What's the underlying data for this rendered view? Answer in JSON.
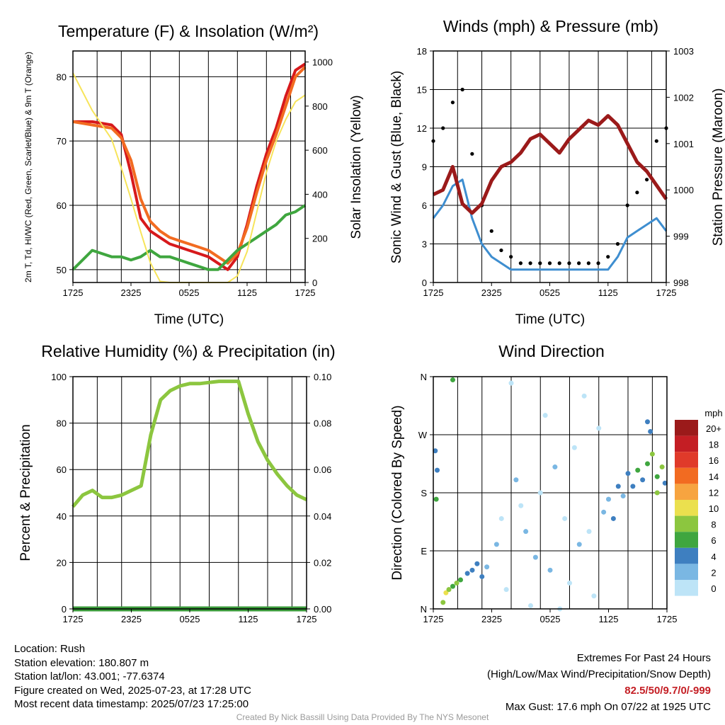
{
  "colors": {
    "t2m": "#d7191c",
    "td": "#3fa63f",
    "t9m": "#f26b21",
    "insolation": "#f7e45a",
    "wind": "#3e8ed0",
    "gust": "#000000",
    "pressure": "#9b1a1a",
    "rh": "#8cc63f",
    "precip": "#3a9a3a"
  },
  "footer": {
    "location": "Location: Rush",
    "elevation": "Station elevation: 180.807 m",
    "latlon": "Station lat/lon: 43.001; -77.6374",
    "created": "Figure created on Wed, 2025-07-23, at 17:28 UTC",
    "recent": "Most recent data timestamp: 2025/07/23 17:25:00",
    "extremes_title": "Extremes For Past 24 Hours",
    "extremes_sub": "(High/Low/Max Wind/Precipitation/Snow Depth)",
    "extremes_values": "82.5/50/9.7/0/-999",
    "max_gust": "Max Gust: 17.6 mph On 07/22 at 1925 UTC",
    "credit": "Created By Nick Bassill Using Data Provided By The NYS Mesonet"
  },
  "chart_data": [
    {
      "type": "line",
      "title": "Temperature (F) & Insolation (W/m²)",
      "xlabel": "Time (UTC)",
      "ylabel_left": "2m T, Td, HI/WC (Red, Green, Scarlet/Blue) & 9m T (Orange)",
      "ylabel_right": "Solar Insolation (Yellow)",
      "xticks": [
        "1725",
        "2325",
        "0525",
        "1125",
        "1725"
      ],
      "ylim_left": [
        48,
        84
      ],
      "yticks_left": [
        50,
        60,
        70,
        80
      ],
      "ylim_right": [
        0,
        1050
      ],
      "yticks_right": [
        0,
        200,
        400,
        600,
        800,
        1000
      ],
      "x_hours": [
        0,
        2,
        4,
        5,
        6,
        7,
        8,
        9,
        10,
        11,
        12,
        13,
        14,
        15,
        16,
        17,
        18,
        19,
        20,
        21,
        22,
        23,
        24
      ],
      "series": [
        {
          "name": "2m T",
          "color": "#d7191c",
          "values": [
            73,
            73,
            72.5,
            71,
            65,
            58,
            56,
            55,
            54,
            53.5,
            53,
            52.5,
            52,
            51,
            50,
            52,
            57,
            63,
            68,
            72,
            77,
            81,
            82
          ]
        },
        {
          "name": "9m T",
          "color": "#f26b21",
          "values": [
            73,
            72.5,
            72,
            70.5,
            67,
            61,
            57.5,
            56,
            55,
            54.5,
            54,
            53.5,
            53,
            52,
            51,
            52.5,
            56.5,
            62,
            67,
            71,
            75.5,
            80,
            81.5
          ]
        },
        {
          "name": "Td",
          "color": "#3fa63f",
          "values": [
            50,
            53,
            52,
            52,
            51.5,
            52,
            53,
            52,
            52,
            51.5,
            51,
            50.5,
            50,
            50,
            51.5,
            53,
            54,
            55,
            56,
            57,
            58.5,
            59,
            60
          ]
        },
        {
          "name": "Insolation",
          "color": "#f7e45a",
          "axis": "right",
          "values": [
            950,
            780,
            650,
            520,
            380,
            230,
            90,
            5,
            0,
            0,
            0,
            0,
            0,
            0,
            0,
            30,
            140,
            320,
            500,
            640,
            740,
            820,
            850
          ]
        }
      ]
    },
    {
      "type": "line",
      "title": "Winds (mph) & Pressure (mb)",
      "xlabel": "Time (UTC)",
      "ylabel_left": "Sonic Wind & Gust (Blue, Black)",
      "ylabel_right": "Station Pressure (Maroon)",
      "xticks": [
        "1725",
        "2325",
        "0525",
        "1125",
        "1725"
      ],
      "ylim_left": [
        0,
        18
      ],
      "yticks_left": [
        0,
        3,
        6,
        9,
        12,
        15,
        18
      ],
      "ylim_right": [
        998,
        1003
      ],
      "yticks_right": [
        998,
        999,
        1000,
        1001,
        1002,
        1003
      ],
      "x_hours": [
        0,
        1,
        2,
        3,
        4,
        5,
        6,
        7,
        8,
        9,
        10,
        11,
        12,
        13,
        14,
        15,
        16,
        17,
        18,
        19,
        20,
        21,
        22,
        23,
        24
      ],
      "series": [
        {
          "name": "Wind",
          "color": "#3e8ed0",
          "values": [
            5,
            6,
            7.5,
            8,
            5,
            3,
            2,
            1.5,
            1,
            1,
            1,
            1,
            1,
            1,
            1,
            1,
            1,
            1,
            1,
            2,
            3.5,
            4,
            4.5,
            5,
            4
          ]
        },
        {
          "name": "Gust",
          "color": "#000000",
          "values": [
            11,
            12,
            14,
            15,
            10,
            6,
            4,
            2.5,
            2,
            1.5,
            1.5,
            1.5,
            1.5,
            1.5,
            1.5,
            1.5,
            1.5,
            1.5,
            2,
            3,
            6,
            7,
            8,
            11,
            12
          ]
        },
        {
          "name": "Pressure",
          "color": "#9b1a1a",
          "axis": "right",
          "values": [
            999.9,
            1000,
            1000.5,
            999.7,
            999.5,
            999.7,
            1000.2,
            1000.5,
            1000.6,
            1000.8,
            1001.1,
            1001.2,
            1001,
            1000.8,
            1001.1,
            1001.3,
            1001.5,
            1001.4,
            1001.6,
            1001.4,
            1001,
            1000.6,
            1000.4,
            1000.1,
            999.8
          ]
        }
      ]
    },
    {
      "type": "line",
      "title": "Relative Humidity (%) & Precipitation (in)",
      "xlabel": "",
      "ylabel_left": "Percent & Precipitation",
      "xticks": [
        "1725",
        "2325",
        "0525",
        "1125",
        "1725"
      ],
      "ylim_left": [
        0,
        100
      ],
      "yticks_left": [
        0,
        20,
        40,
        60,
        80,
        100
      ],
      "ylim_right": [
        0,
        0.1
      ],
      "yticks_right": [
        "0.00",
        "0.02",
        "0.04",
        "0.06",
        "0.08",
        "0.10"
      ],
      "x_hours": [
        0,
        1,
        2,
        3,
        4,
        5,
        6,
        7,
        8,
        9,
        10,
        11,
        12,
        13,
        14,
        15,
        16,
        17,
        18,
        19,
        20,
        21,
        22,
        23,
        24
      ],
      "series": [
        {
          "name": "RH",
          "color": "#8cc63f",
          "values": [
            44,
            49,
            51,
            48,
            48,
            49,
            51,
            53,
            75,
            90,
            94,
            96,
            97,
            97,
            97.5,
            98,
            98,
            98,
            84,
            72,
            64,
            58,
            53,
            49,
            47
          ]
        },
        {
          "name": "Precipitation",
          "color": "#3a9a3a",
          "values": [
            0,
            0,
            0,
            0,
            0,
            0,
            0,
            0,
            0,
            0,
            0,
            0,
            0,
            0,
            0,
            0,
            0,
            0,
            0,
            0,
            0,
            0,
            0,
            0,
            0
          ]
        }
      ]
    },
    {
      "type": "scatter",
      "title": "Wind Direction",
      "ylabel_left": "Direction (Colored By Speed)",
      "xticks": [
        "1725",
        "2325",
        "0525",
        "1125",
        "1725"
      ],
      "yticks_left": [
        "N",
        "E",
        "S",
        "W",
        "N"
      ],
      "ylim_left": [
        0,
        360
      ],
      "legend_title": "mph",
      "legend_labels": [
        "20+",
        "18",
        "16",
        "14",
        "12",
        "10",
        "8",
        "6",
        "4",
        "2",
        "0"
      ],
      "legend_colors": [
        "#9b1a1a",
        "#c41e24",
        "#e03a2a",
        "#f26b21",
        "#f7a440",
        "#ebe04e",
        "#8cc63f",
        "#3fa63f",
        "#3e7fc0",
        "#7ab7e3",
        "#bde4f7"
      ],
      "points": [
        {
          "x": 0.2,
          "y": 245,
          "speed": 4
        },
        {
          "x": 0.4,
          "y": 215,
          "speed": 4
        },
        {
          "x": 0.3,
          "y": 170,
          "speed": 6
        },
        {
          "x": 1.0,
          "y": 10,
          "speed": 8
        },
        {
          "x": 1.3,
          "y": 25,
          "speed": 10
        },
        {
          "x": 1.6,
          "y": 30,
          "speed": 8
        },
        {
          "x": 2.0,
          "y": 35,
          "speed": 6
        },
        {
          "x": 2.4,
          "y": 40,
          "speed": 8
        },
        {
          "x": 2.8,
          "y": 45,
          "speed": 6
        },
        {
          "x": 2.0,
          "y": 355,
          "speed": 6
        },
        {
          "x": 3.5,
          "y": 55,
          "speed": 4
        },
        {
          "x": 4.0,
          "y": 60,
          "speed": 4
        },
        {
          "x": 4.5,
          "y": 70,
          "speed": 4
        },
        {
          "x": 5.0,
          "y": 50,
          "speed": 4
        },
        {
          "x": 5.5,
          "y": 65,
          "speed": 2
        },
        {
          "x": 6.5,
          "y": 100,
          "speed": 2
        },
        {
          "x": 7.0,
          "y": 140,
          "speed": 0
        },
        {
          "x": 7.5,
          "y": 30,
          "speed": 0
        },
        {
          "x": 8.0,
          "y": 350,
          "speed": 0
        },
        {
          "x": 8.5,
          "y": 200,
          "speed": 2
        },
        {
          "x": 9.0,
          "y": 160,
          "speed": 0
        },
        {
          "x": 9.5,
          "y": 120,
          "speed": 2
        },
        {
          "x": 10.0,
          "y": 5,
          "speed": 0
        },
        {
          "x": 10.5,
          "y": 80,
          "speed": 2
        },
        {
          "x": 11.0,
          "y": 180,
          "speed": 0
        },
        {
          "x": 11.5,
          "y": 300,
          "speed": 0
        },
        {
          "x": 12.0,
          "y": 60,
          "speed": 2
        },
        {
          "x": 12.5,
          "y": 220,
          "speed": 2
        },
        {
          "x": 13.0,
          "y": 0,
          "speed": 0
        },
        {
          "x": 13.5,
          "y": 140,
          "speed": 0
        },
        {
          "x": 14.0,
          "y": 40,
          "speed": 0
        },
        {
          "x": 14.5,
          "y": 250,
          "speed": 0
        },
        {
          "x": 15.0,
          "y": 100,
          "speed": 2
        },
        {
          "x": 15.5,
          "y": 330,
          "speed": 0
        },
        {
          "x": 16.0,
          "y": 120,
          "speed": 0
        },
        {
          "x": 16.5,
          "y": 20,
          "speed": 0
        },
        {
          "x": 17.0,
          "y": 280,
          "speed": 0
        },
        {
          "x": 17.5,
          "y": 150,
          "speed": 2
        },
        {
          "x": 18.0,
          "y": 170,
          "speed": 2
        },
        {
          "x": 18.5,
          "y": 140,
          "speed": 4
        },
        {
          "x": 19.0,
          "y": 190,
          "speed": 4
        },
        {
          "x": 19.5,
          "y": 175,
          "speed": 2
        },
        {
          "x": 20.0,
          "y": 210,
          "speed": 4
        },
        {
          "x": 20.5,
          "y": 190,
          "speed": 4
        },
        {
          "x": 21.0,
          "y": 215,
          "speed": 6
        },
        {
          "x": 21.5,
          "y": 200,
          "speed": 4
        },
        {
          "x": 22.0,
          "y": 225,
          "speed": 6
        },
        {
          "x": 22.5,
          "y": 240,
          "speed": 8
        },
        {
          "x": 23.0,
          "y": 205,
          "speed": 6
        },
        {
          "x": 23.5,
          "y": 220,
          "speed": 8
        },
        {
          "x": 23.8,
          "y": 195,
          "speed": 4
        },
        {
          "x": 22.0,
          "y": 290,
          "speed": 4
        },
        {
          "x": 22.3,
          "y": 275,
          "speed": 4
        },
        {
          "x": 23.0,
          "y": 180,
          "speed": 8
        }
      ]
    }
  ]
}
